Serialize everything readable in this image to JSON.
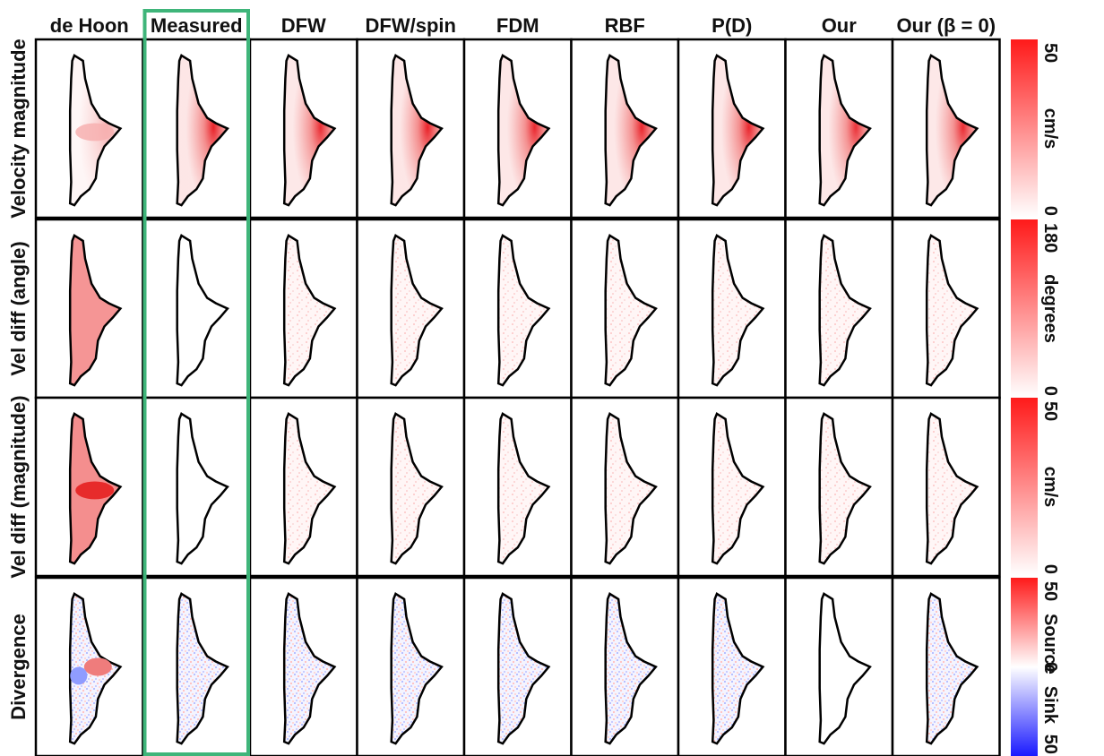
{
  "columns": [
    "de Hoon",
    "Measured",
    "DFW",
    "DFW/spin",
    "FDM",
    "RBF",
    "P(D)",
    "Our",
    "Our (β = 0)"
  ],
  "rows": [
    "Velocity magnitude",
    "Vel diff (angle)",
    "Vel diff (magnitude)",
    "Divergence"
  ],
  "highlighted_column": "Measured",
  "colors": {
    "highlight": "#3fb57a",
    "positive": "#ff1a1a",
    "negative": "#1a1aff",
    "neutral": "#ffffff",
    "outline": "#000000"
  },
  "intensity": [
    [
      0.35,
      0.95,
      0.9,
      0.95,
      0.92,
      0.93,
      0.93,
      0.88,
      0.9
    ],
    [
      0.8,
      0.0,
      0.1,
      0.12,
      0.12,
      0.14,
      0.12,
      0.14,
      0.16
    ],
    [
      0.85,
      0.0,
      0.08,
      0.08,
      0.08,
      0.1,
      0.08,
      0.1,
      0.1
    ],
    [
      0.55,
      0.6,
      0.55,
      0.55,
      0.5,
      0.45,
      0.6,
      0.0,
      0.5
    ]
  ],
  "colorbars": [
    {
      "top": "50",
      "bottom": "0",
      "unit": "cm/s",
      "type": "sequential"
    },
    {
      "top": "180",
      "bottom": "0",
      "unit": "degrees",
      "type": "sequential"
    },
    {
      "top": "50",
      "bottom": "0",
      "unit": "cm/s",
      "type": "sequential"
    },
    {
      "top": "50",
      "bottom": "50",
      "middle": "0",
      "top_label": "Source",
      "bottom_label": "Sink",
      "type": "diverging"
    }
  ]
}
